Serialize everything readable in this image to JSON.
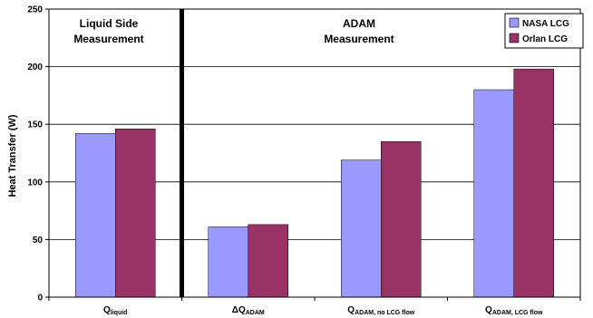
{
  "chart_data": {
    "type": "bar",
    "ylabel": "Heat Transfer (W)",
    "ylim": [
      0,
      250
    ],
    "yticks": [
      0,
      50,
      100,
      150,
      200,
      250
    ],
    "grid": true,
    "legend_position": "top-right",
    "categories": [
      {
        "main": "Q",
        "sub": "liquid",
        "prefix": ""
      },
      {
        "main": "Q",
        "sub": "ADAM",
        "prefix": "ΔQ"
      },
      {
        "main": "Q",
        "sub": "ADAM, no LCG flow",
        "prefix": ""
      },
      {
        "main": "Q",
        "sub": "ADAM, LCG flow",
        "prefix": ""
      }
    ],
    "series": [
      {
        "name": "NASA LCG",
        "color": "#9999ff",
        "values": [
          142,
          61,
          119,
          180
        ]
      },
      {
        "name": "Orlan LCG",
        "color": "#993366",
        "values": [
          146,
          63,
          135,
          198
        ]
      }
    ],
    "sections": [
      {
        "line1": "Liquid Side",
        "line2": "Measurement"
      },
      {
        "line1": "ADAM",
        "line2": "Measurement"
      }
    ]
  }
}
